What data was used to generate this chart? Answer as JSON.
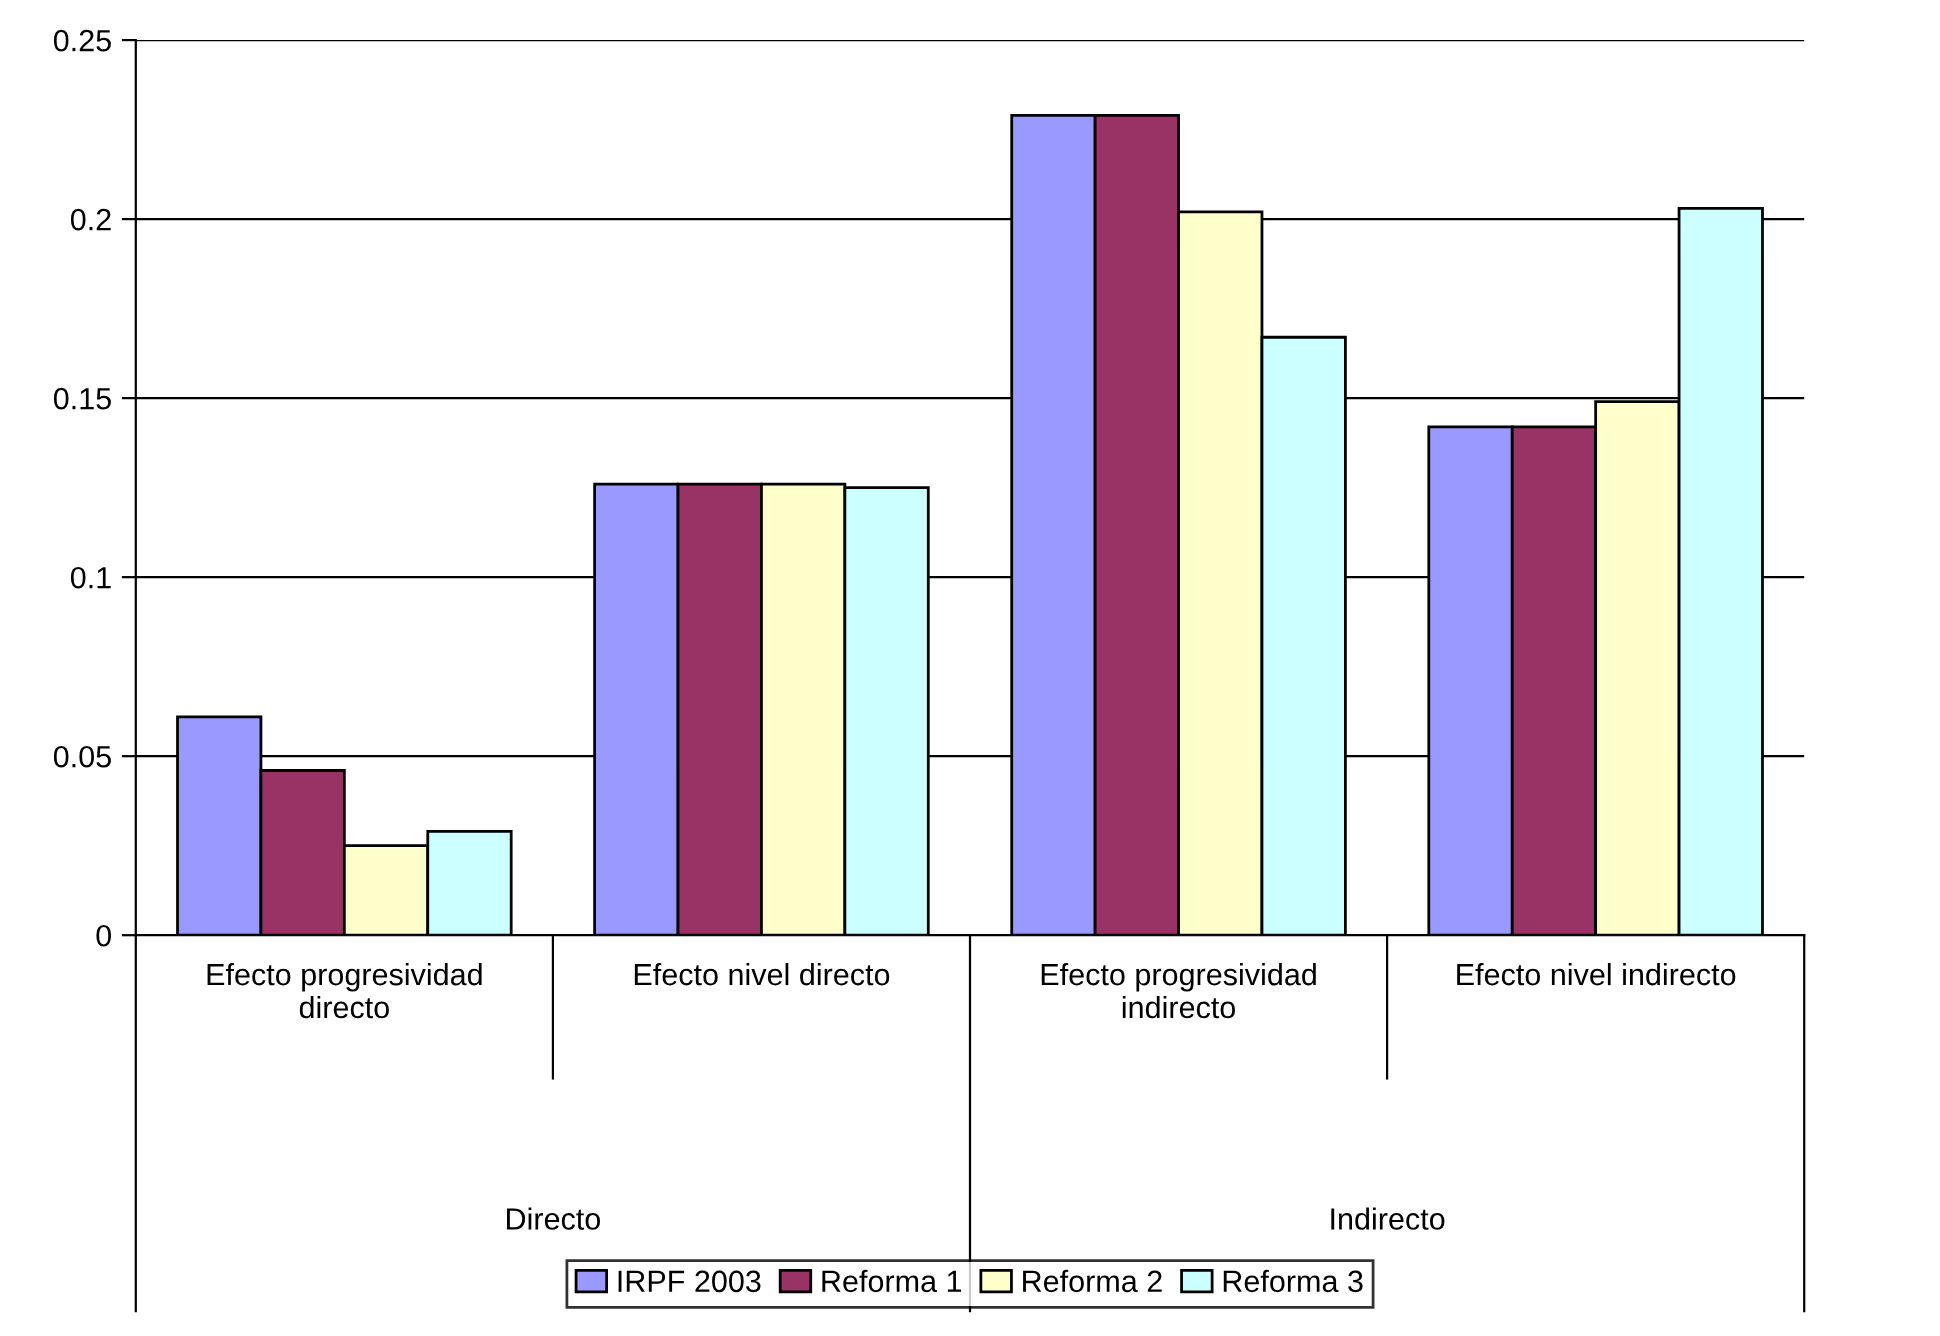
{
  "chart_data": {
    "type": "bar",
    "categories": [
      "Efecto progresividad\ndirecto",
      "Efecto nivel directo",
      "Efecto progresividad\nindirecto",
      "Efecto nivel indirecto"
    ],
    "series": [
      {
        "name": "IRPF 2003",
        "color": "#9999ff",
        "values": [
          0.061,
          0.126,
          0.229,
          0.142
        ]
      },
      {
        "name": "Reforma 1",
        "color": "#993366",
        "values": [
          0.046,
          0.126,
          0.229,
          0.142
        ]
      },
      {
        "name": "Reforma 2",
        "color": "#ffffcc",
        "values": [
          0.025,
          0.126,
          0.202,
          0.149
        ]
      },
      {
        "name": "Reforma 3",
        "color": "#ccffff",
        "values": [
          0.029,
          0.125,
          0.167,
          0.203
        ]
      }
    ],
    "annotations": [
      "Directo",
      "Indirecto"
    ],
    "ylim": [
      0,
      0.25
    ],
    "yticks": [
      0,
      0.05,
      0.1,
      0.15,
      0.2,
      0.25
    ],
    "grid": "y",
    "legend": "bottom"
  }
}
